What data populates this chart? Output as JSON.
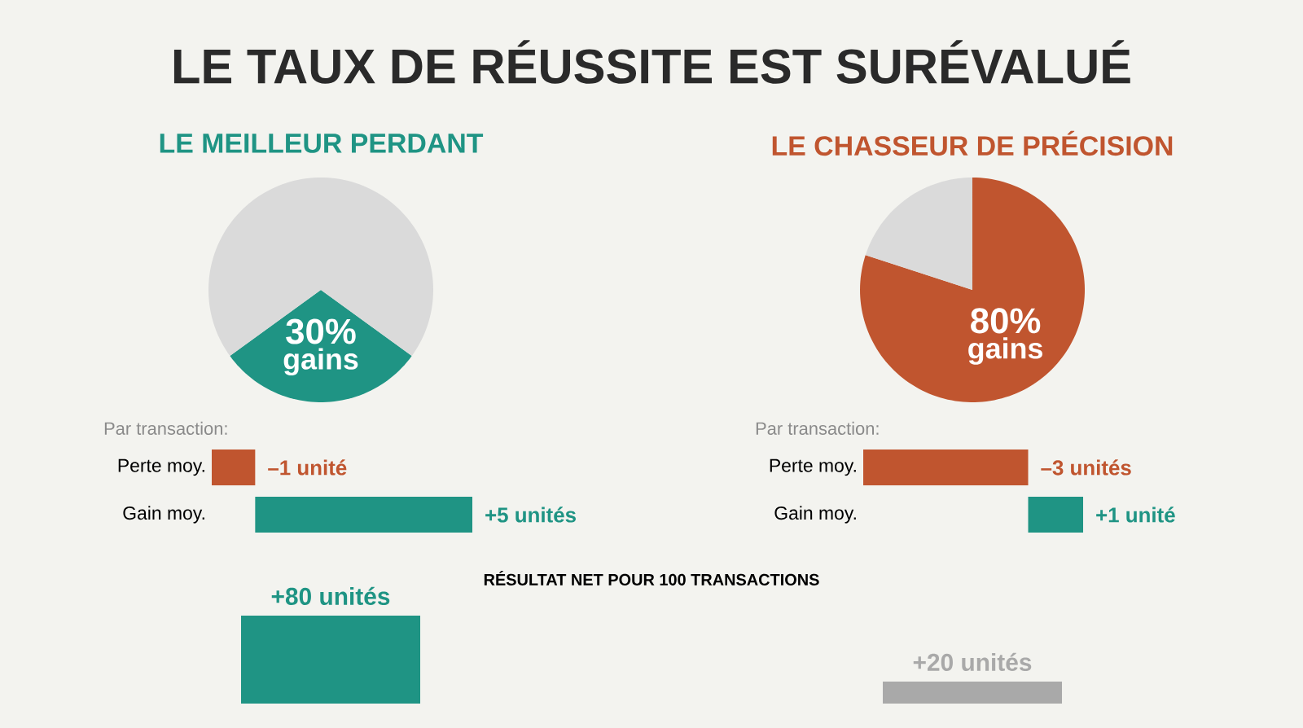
{
  "chart_data": [
    {
      "type": "other",
      "title": "LE TAUX DE RÉUSSITE EST SURÉVALUÉ"
    },
    {
      "type": "pie",
      "title": "LE MEILLEUR PERDANT",
      "categories": [
        "gains",
        null
      ],
      "values": [
        30,
        70
      ],
      "colors": [
        "#1f9484",
        "#dadada"
      ],
      "value_labels": [
        "30%",
        null
      ]
    },
    {
      "type": "pie",
      "title": "LE CHASSEUR DE PRÉCISION",
      "categories": [
        "gains",
        null
      ],
      "values": [
        80,
        20
      ],
      "colors": [
        "#c0552f",
        "#dadada"
      ],
      "value_labels": [
        "80%",
        null
      ]
    },
    {
      "type": "bar",
      "orientation": "horizontal",
      "title": "Par transaction:",
      "categories": [
        "Perte moy.",
        "Gain moy."
      ],
      "values": [
        -1,
        5
      ],
      "colors": [
        "#c0552f",
        "#1f9484"
      ],
      "value_labels": [
        "–1 unité",
        "+5 unités"
      ]
    },
    {
      "type": "bar",
      "orientation": "horizontal",
      "title": "Par transaction:",
      "categories": [
        "Perte moy.",
        "Gain moy."
      ],
      "values": [
        -3,
        1
      ],
      "colors": [
        "#c0552f",
        "#1f9484"
      ],
      "value_labels": [
        "–3 unités",
        "+1 unité"
      ]
    },
    {
      "type": "bar",
      "title": "RÉSULTAT NET POUR 100 TRANSACTIONS",
      "categories": [
        null,
        null
      ],
      "values": [
        80,
        20
      ],
      "colors": [
        "#1f9484",
        "#a9a9a9"
      ],
      "value_labels": [
        "+80 unités",
        "+20 unités"
      ]
    }
  ]
}
